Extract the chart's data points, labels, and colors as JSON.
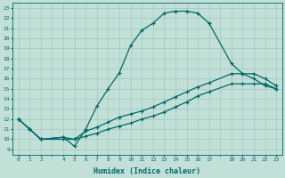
{
  "xlabel": "Humidex (Indice chaleur)",
  "bg_color": "#c2e0d8",
  "grid_color": "#9dc8bf",
  "line_color": "#006868",
  "xlim": [
    -0.5,
    23.5
  ],
  "ylim": [
    8.5,
    23.5
  ],
  "xticks": [
    0,
    1,
    2,
    4,
    5,
    6,
    7,
    8,
    9,
    10,
    11,
    12,
    13,
    14,
    15,
    16,
    17,
    19,
    20,
    21,
    22,
    23
  ],
  "yticks": [
    9,
    10,
    11,
    12,
    13,
    14,
    15,
    16,
    17,
    18,
    19,
    20,
    21,
    22,
    23
  ],
  "curve1_x": [
    0,
    1,
    2,
    4,
    5,
    6,
    7,
    8,
    9,
    10,
    11,
    12,
    13,
    14,
    15,
    16,
    17
  ],
  "curve1_y": [
    12.0,
    11.0,
    10.0,
    10.2,
    9.3,
    11.0,
    13.3,
    15.0,
    16.6,
    19.3,
    20.8,
    21.5,
    22.5,
    22.7,
    22.7,
    22.5,
    21.5
  ],
  "curve2_x": [
    17,
    19,
    20,
    21,
    22,
    23
  ],
  "curve2_y": [
    21.5,
    17.5,
    16.5,
    16.0,
    15.3,
    15.0
  ],
  "curve3_x": [
    0,
    1,
    2,
    4,
    5,
    6,
    7,
    8,
    9,
    10,
    11,
    12,
    13,
    14,
    15,
    16,
    17,
    19,
    20,
    21,
    22,
    23
  ],
  "curve3_y": [
    12.0,
    11.0,
    10.0,
    10.2,
    10.0,
    10.8,
    11.2,
    11.7,
    12.2,
    12.5,
    12.8,
    13.2,
    13.7,
    14.2,
    14.7,
    15.2,
    15.6,
    16.5,
    16.5,
    16.5,
    16.0,
    15.3
  ],
  "curve4_x": [
    0,
    1,
    2,
    4,
    5,
    6,
    7,
    8,
    9,
    10,
    11,
    12,
    13,
    14,
    15,
    16,
    17,
    19,
    20,
    21,
    22,
    23
  ],
  "curve4_y": [
    12.0,
    11.0,
    10.0,
    10.0,
    10.0,
    10.3,
    10.6,
    11.0,
    11.3,
    11.6,
    12.0,
    12.3,
    12.7,
    13.2,
    13.7,
    14.3,
    14.7,
    15.5,
    15.5,
    15.5,
    15.5,
    15.0
  ]
}
